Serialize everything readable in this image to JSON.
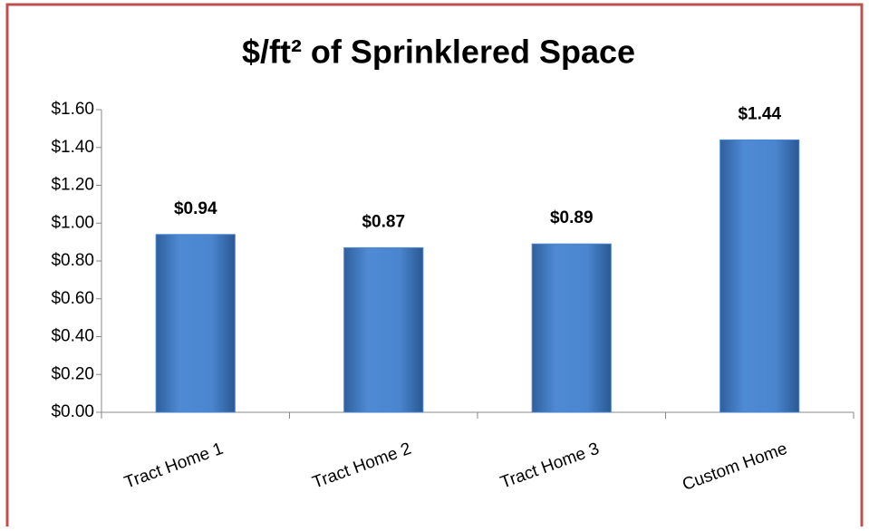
{
  "chart_data": {
    "type": "bar",
    "title": "$/ft² of Sprinklered Space",
    "categories": [
      "Tract Home 1",
      "Tract Home 2",
      "Tract Home 3",
      "Custom Home"
    ],
    "values": [
      0.94,
      0.87,
      0.89,
      1.44
    ],
    "value_labels": [
      "$0.94",
      "$0.87",
      "$0.89",
      "$1.44"
    ],
    "color": "#4a86cf",
    "ylim": [
      0,
      1.6
    ],
    "yticks": [
      {
        "value": 0,
        "label": "$0.00"
      },
      {
        "value": 0.2,
        "label": "$0.20"
      },
      {
        "value": 0.4,
        "label": "$0.40"
      },
      {
        "value": 0.6,
        "label": "$0.60"
      },
      {
        "value": 0.8,
        "label": "$0.80"
      },
      {
        "value": 1.0,
        "label": "$1.00"
      },
      {
        "value": 1.2,
        "label": "$1.20"
      },
      {
        "value": 1.4,
        "label": "$1.40"
      },
      {
        "value": 1.6,
        "label": "$1.60"
      }
    ],
    "grid": false
  }
}
